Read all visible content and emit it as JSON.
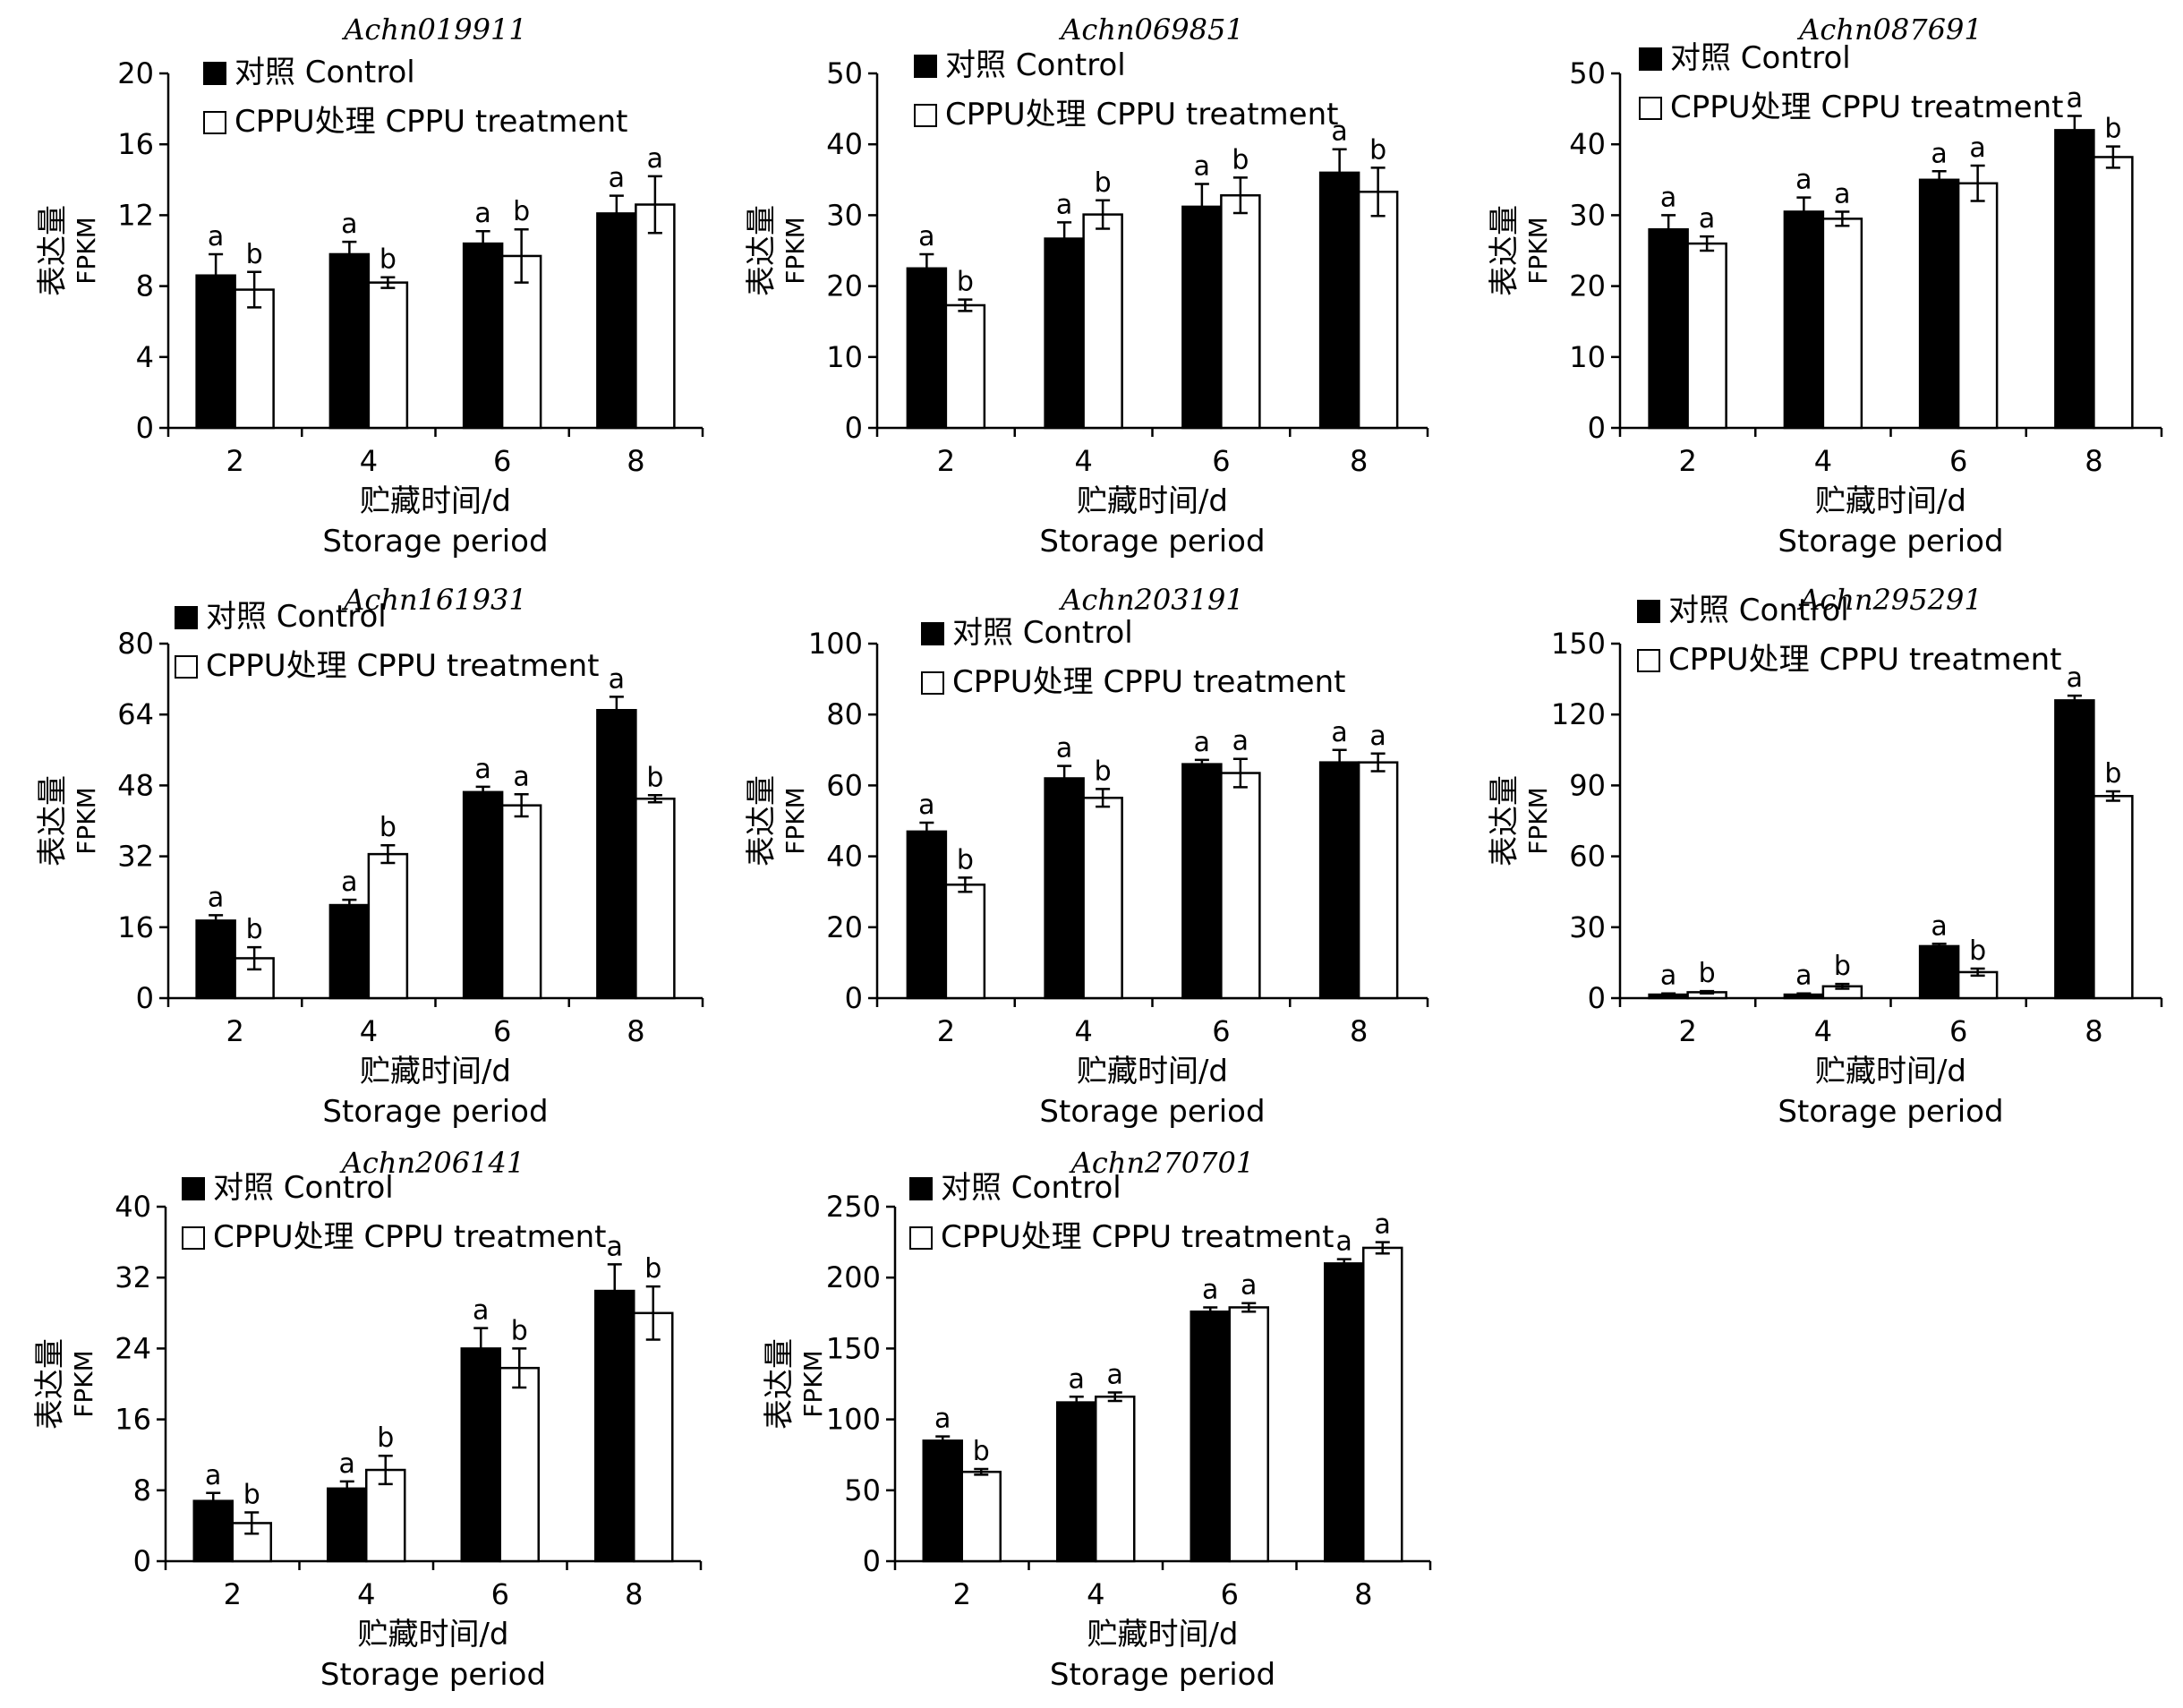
{
  "figure": {
    "legend_labels": {
      "control": "对照 Control",
      "treatment": "CPPU处理 CPPU treatment"
    },
    "ylabel_cn": "表达量",
    "ylabel_en": "FPKM",
    "xlabel_cn": "贮藏时间/d",
    "xlabel_en": "Storage period",
    "colors": {
      "control": "#000000",
      "treatment": "#ffffff",
      "stroke": "#000000"
    }
  },
  "chart_data": [
    {
      "type": "bar",
      "title": "Achn019911",
      "categories": [
        "2",
        "4",
        "6",
        "8"
      ],
      "ylim": [
        0,
        20
      ],
      "yticks": [
        0,
        4,
        8,
        12,
        16,
        20
      ],
      "series": [
        {
          "name": "对照 Control",
          "values": [
            8.6,
            9.8,
            10.4,
            12.1
          ],
          "errors": [
            1.2,
            0.7,
            0.7,
            1.0
          ],
          "letters": [
            "a",
            "a",
            "a",
            "a"
          ]
        },
        {
          "name": "CPPU处理 CPPU treatment",
          "values": [
            7.8,
            8.2,
            9.7,
            12.6
          ],
          "errors": [
            1.0,
            0.3,
            1.5,
            1.6
          ],
          "letters": [
            "b",
            "b",
            "b",
            "a"
          ]
        }
      ]
    },
    {
      "type": "bar",
      "title": "Achn069851",
      "categories": [
        "2",
        "4",
        "6",
        "8"
      ],
      "ylim": [
        0,
        50
      ],
      "yticks": [
        0,
        10,
        20,
        30,
        40,
        50
      ],
      "series": [
        {
          "name": "对照 Control",
          "values": [
            22.5,
            26.7,
            31.2,
            36.0
          ],
          "errors": [
            2.0,
            2.3,
            3.2,
            3.3
          ],
          "letters": [
            "a",
            "a",
            "a",
            "a"
          ]
        },
        {
          "name": "CPPU处理 CPPU treatment",
          "values": [
            17.3,
            30.1,
            32.8,
            33.3
          ],
          "errors": [
            0.8,
            2.0,
            2.5,
            3.4
          ],
          "letters": [
            "b",
            "b",
            "b",
            "b"
          ]
        }
      ]
    },
    {
      "type": "bar",
      "title": "Achn087691",
      "categories": [
        "2",
        "4",
        "6",
        "8"
      ],
      "ylim": [
        0,
        50
      ],
      "yticks": [
        0,
        10,
        20,
        30,
        40,
        50
      ],
      "series": [
        {
          "name": "对照 Control",
          "values": [
            28.0,
            30.5,
            35.0,
            42.0
          ],
          "errors": [
            2.0,
            2.0,
            1.2,
            2.0
          ],
          "letters": [
            "a",
            "a",
            "a",
            "a"
          ]
        },
        {
          "name": "CPPU处理 CPPU treatment",
          "values": [
            26.0,
            29.5,
            34.5,
            38.2
          ],
          "errors": [
            1.0,
            1.0,
            2.5,
            1.5
          ],
          "letters": [
            "a",
            "a",
            "a",
            "b"
          ]
        }
      ]
    },
    {
      "type": "bar",
      "title": "Achn161931",
      "categories": [
        "2",
        "4",
        "6",
        "8"
      ],
      "ylim": [
        0,
        80
      ],
      "yticks": [
        0,
        16,
        32,
        48,
        64,
        80
      ],
      "series": [
        {
          "name": "对照 Control",
          "values": [
            17.5,
            21.0,
            46.5,
            65.0
          ],
          "errors": [
            1.2,
            1.2,
            1.2,
            3.0
          ],
          "letters": [
            "a",
            "a",
            "a",
            "a"
          ]
        },
        {
          "name": "CPPU处理 CPPU treatment",
          "values": [
            9.0,
            32.5,
            43.5,
            45.0
          ],
          "errors": [
            2.5,
            2.0,
            2.5,
            0.8
          ],
          "letters": [
            "b",
            "b",
            "a",
            "b"
          ]
        }
      ]
    },
    {
      "type": "bar",
      "title": "Achn203191",
      "categories": [
        "2",
        "4",
        "6",
        "8"
      ],
      "ylim": [
        0,
        100
      ],
      "yticks": [
        0,
        20,
        40,
        60,
        80,
        100
      ],
      "series": [
        {
          "name": "对照 Control",
          "values": [
            47.0,
            62.0,
            66.0,
            66.5
          ],
          "errors": [
            2.5,
            3.5,
            1.2,
            3.5
          ],
          "letters": [
            "a",
            "a",
            "a",
            "a"
          ]
        },
        {
          "name": "CPPU处理 CPPU treatment",
          "values": [
            32.0,
            56.5,
            63.5,
            66.5
          ],
          "errors": [
            2.0,
            2.5,
            4.0,
            2.5
          ],
          "letters": [
            "b",
            "b",
            "a",
            "a"
          ]
        }
      ]
    },
    {
      "type": "bar",
      "title": "Achn295291",
      "categories": [
        "2",
        "4",
        "6",
        "8"
      ],
      "ylim": [
        0,
        150
      ],
      "yticks": [
        0,
        30,
        60,
        90,
        120,
        150
      ],
      "series": [
        {
          "name": "对照 Control",
          "values": [
            1.5,
            1.5,
            22.0,
            126.0
          ],
          "errors": [
            0.5,
            0.5,
            1.0,
            2.0
          ],
          "letters": [
            "a",
            "a",
            "a",
            "a"
          ]
        },
        {
          "name": "CPPU处理 CPPU treatment",
          "values": [
            2.5,
            5.0,
            11.0,
            85.5
          ],
          "errors": [
            0.5,
            1.0,
            1.5,
            2.0
          ],
          "letters": [
            "b",
            "b",
            "b",
            "b"
          ]
        }
      ]
    },
    {
      "type": "bar",
      "title": "Achn206141",
      "categories": [
        "2",
        "4",
        "6",
        "8"
      ],
      "ylim": [
        0,
        40
      ],
      "yticks": [
        0,
        8,
        16,
        24,
        32,
        40
      ],
      "series": [
        {
          "name": "对照 Control",
          "values": [
            6.8,
            8.2,
            24.0,
            30.5
          ],
          "errors": [
            0.9,
            0.8,
            2.3,
            3.0
          ],
          "letters": [
            "a",
            "a",
            "a",
            "a"
          ]
        },
        {
          "name": "CPPU处理 CPPU treatment",
          "values": [
            4.3,
            10.3,
            21.8,
            28.0
          ],
          "errors": [
            1.2,
            1.6,
            2.2,
            3.0
          ],
          "letters": [
            "b",
            "b",
            "b",
            "b"
          ]
        }
      ]
    },
    {
      "type": "bar",
      "title": "Achn270701",
      "categories": [
        "2",
        "4",
        "6",
        "8"
      ],
      "ylim": [
        0,
        250
      ],
      "yticks": [
        0,
        50,
        100,
        150,
        200,
        250
      ],
      "series": [
        {
          "name": "对照 Control",
          "values": [
            85.0,
            112.0,
            176.0,
            210.0
          ],
          "errors": [
            3.0,
            4.0,
            3.0,
            3.0
          ],
          "letters": [
            "a",
            "a",
            "a",
            "a"
          ]
        },
        {
          "name": "CPPU处理 CPPU treatment",
          "values": [
            63.0,
            116.0,
            179.0,
            221.0
          ],
          "errors": [
            2.0,
            3.0,
            3.0,
            4.0
          ],
          "letters": [
            "b",
            "a",
            "a",
            "a"
          ]
        }
      ]
    }
  ]
}
